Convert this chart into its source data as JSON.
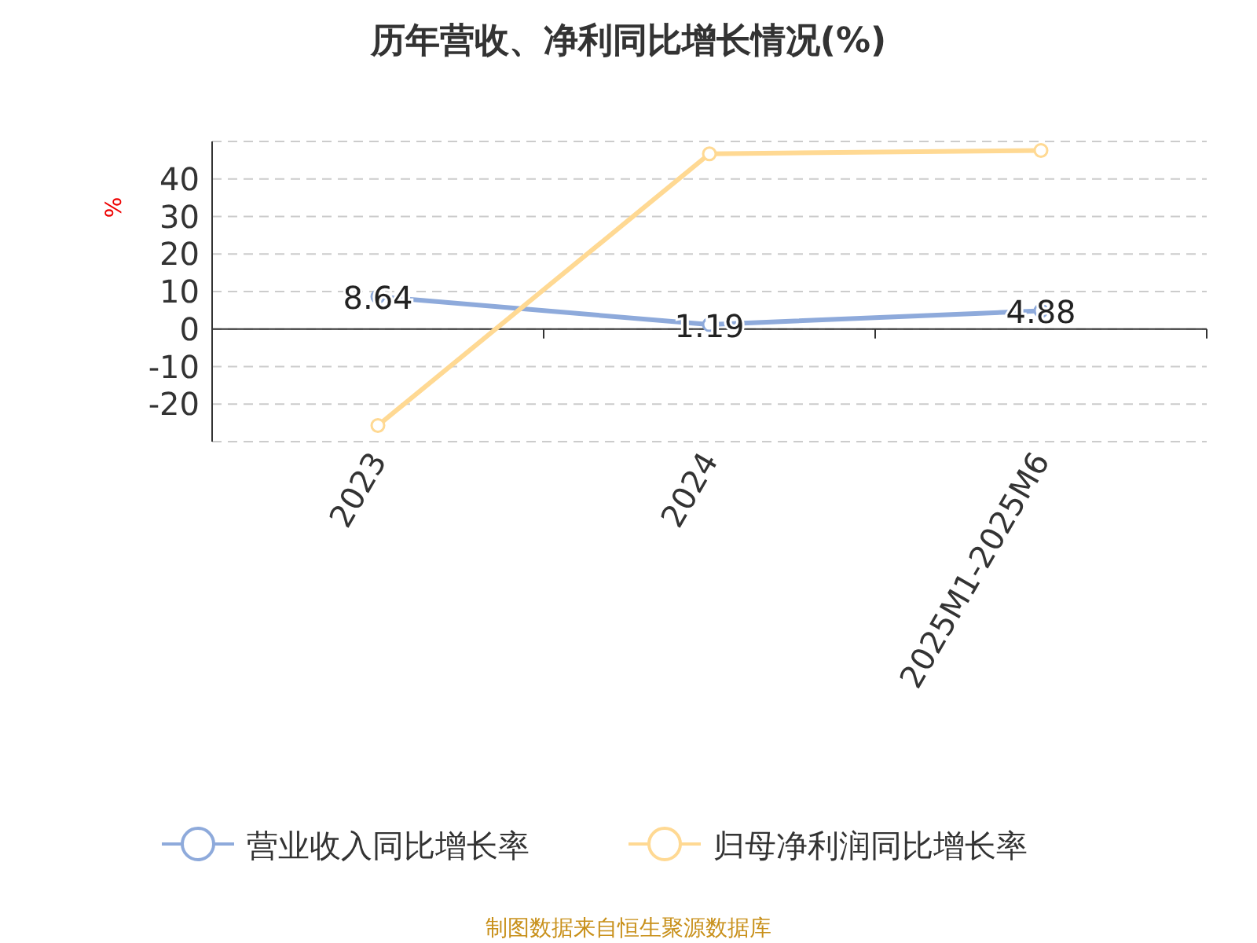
{
  "chart_data": {
    "type": "line",
    "title": "历年营收、净利同比增长情况(%)",
    "ylabel": "%",
    "categories": [
      "2023",
      "2024",
      "2025M1-2025M6"
    ],
    "series": [
      {
        "name": "营业收入同比增长率",
        "color": "#8eaadb",
        "values": [
          8.64,
          1.19,
          4.88
        ],
        "value_labels": [
          "8.64",
          "1.19",
          "4.88"
        ]
      },
      {
        "name": "归母净利润同比增长率",
        "color": "#ffd993",
        "values": [
          -25.7,
          46.7,
          47.6
        ]
      }
    ],
    "ylim": [
      -30,
      50
    ],
    "yticks": [
      {
        "value": -30,
        "label": null
      },
      -20,
      -10,
      0,
      10,
      20,
      30,
      40,
      {
        "value": 50,
        "label": null
      }
    ],
    "grid": "y",
    "legend": "bottom",
    "marker": "circle",
    "line_style": "solid",
    "annotations": [
      "制图数据来自恒生聚源数据库"
    ]
  }
}
